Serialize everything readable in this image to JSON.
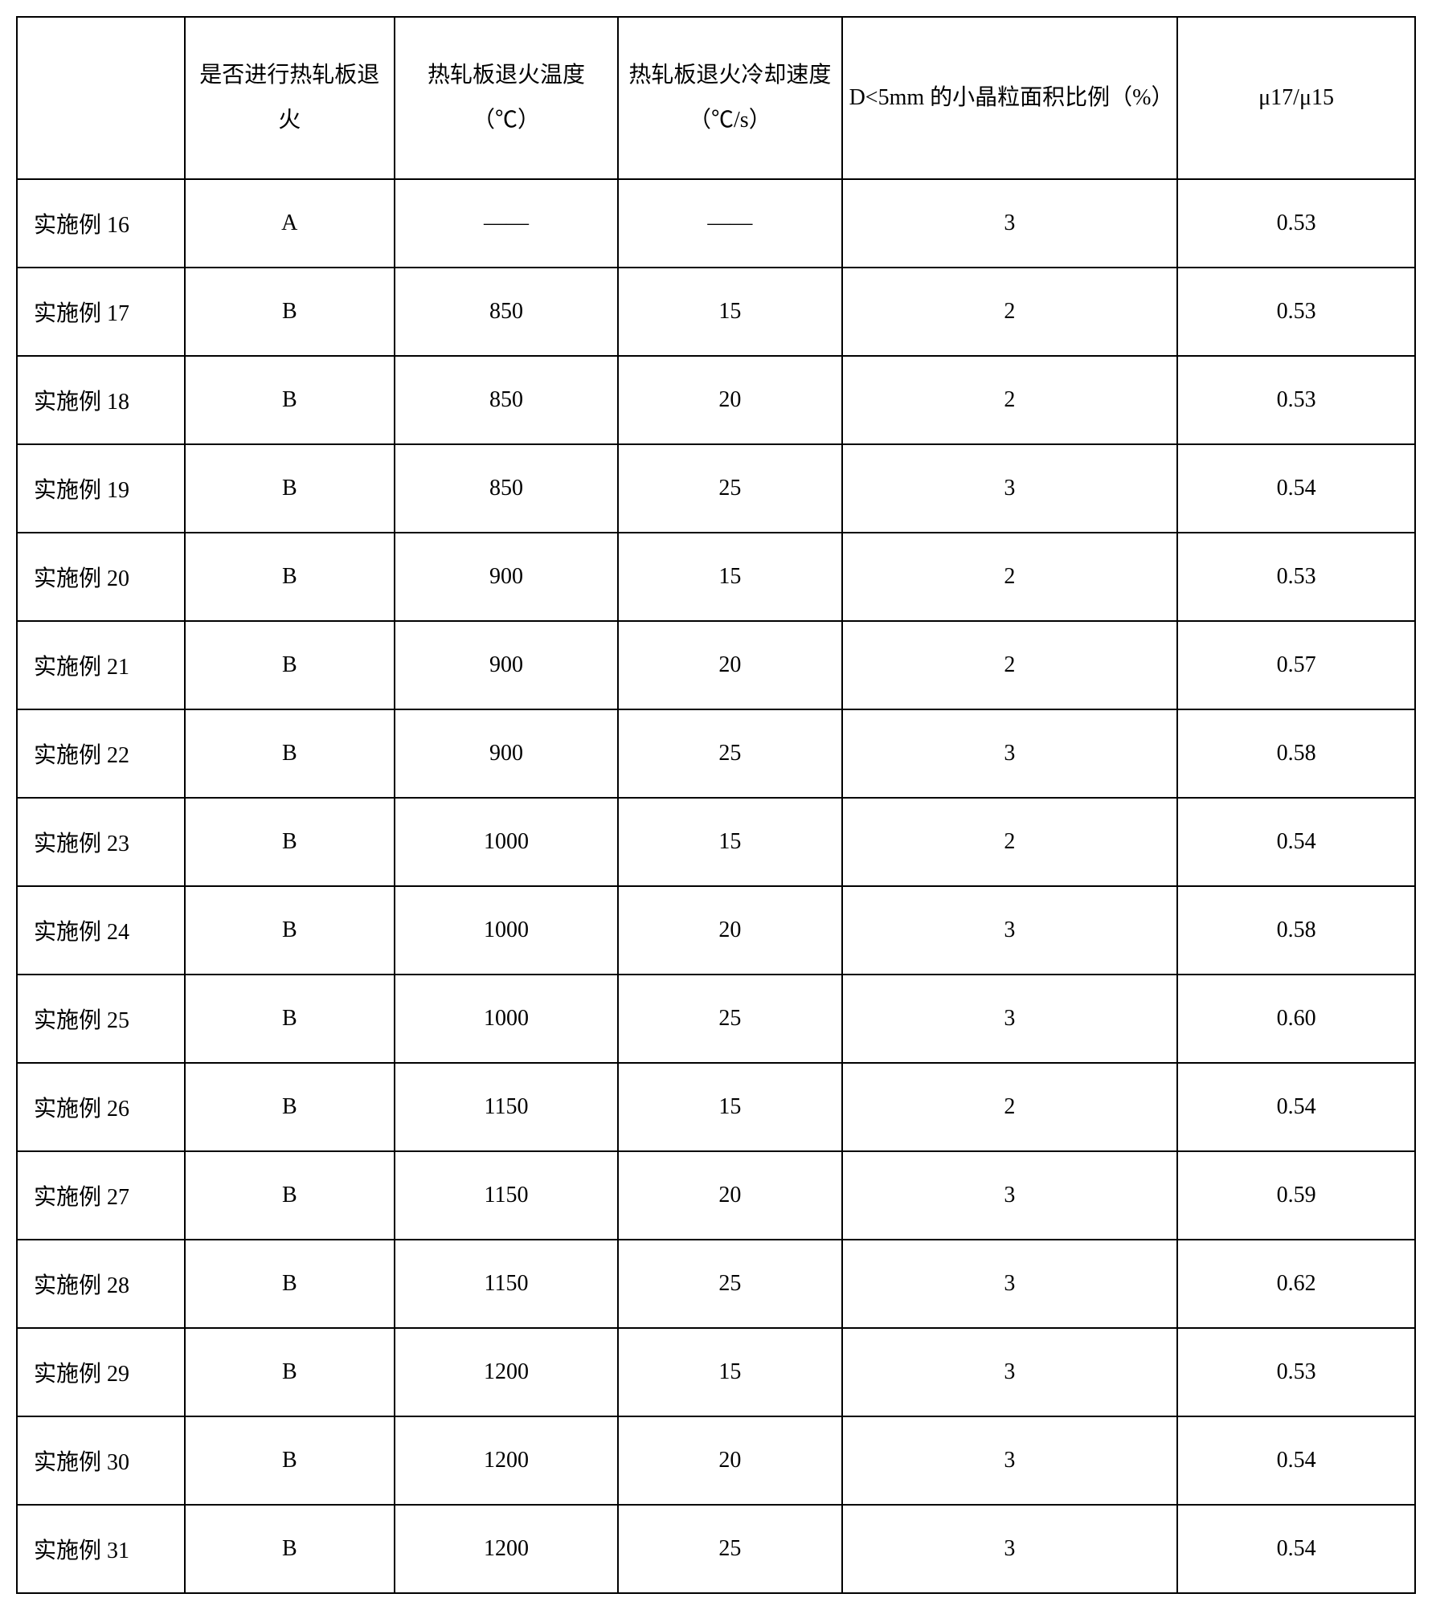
{
  "table": {
    "headers": {
      "blank": "",
      "col1": "是否进行热轧板退火",
      "col2": "热轧板退火温度（℃）",
      "col3": "热轧板退火冷却速度（℃/s）",
      "col4": "D<5mm 的小晶粒面积比例（%）",
      "col5": "μ17/μ15"
    },
    "rows": [
      {
        "label": "实施例 16",
        "c1": "A",
        "c2": "——",
        "c3": "——",
        "c4": "3",
        "c5": "0.53"
      },
      {
        "label": "实施例 17",
        "c1": "B",
        "c2": "850",
        "c3": "15",
        "c4": "2",
        "c5": "0.53"
      },
      {
        "label": "实施例 18",
        "c1": "B",
        "c2": "850",
        "c3": "20",
        "c4": "2",
        "c5": "0.53"
      },
      {
        "label": "实施例 19",
        "c1": "B",
        "c2": "850",
        "c3": "25",
        "c4": "3",
        "c5": "0.54"
      },
      {
        "label": "实施例 20",
        "c1": "B",
        "c2": "900",
        "c3": "15",
        "c4": "2",
        "c5": "0.53"
      },
      {
        "label": "实施例 21",
        "c1": "B",
        "c2": "900",
        "c3": "20",
        "c4": "2",
        "c5": "0.57"
      },
      {
        "label": "实施例 22",
        "c1": "B",
        "c2": "900",
        "c3": "25",
        "c4": "3",
        "c5": "0.58"
      },
      {
        "label": "实施例 23",
        "c1": "B",
        "c2": "1000",
        "c3": "15",
        "c4": "2",
        "c5": "0.54"
      },
      {
        "label": "实施例 24",
        "c1": "B",
        "c2": "1000",
        "c3": "20",
        "c4": "3",
        "c5": "0.58"
      },
      {
        "label": "实施例 25",
        "c1": "B",
        "c2": "1000",
        "c3": "25",
        "c4": "3",
        "c5": "0.60"
      },
      {
        "label": "实施例 26",
        "c1": "B",
        "c2": "1150",
        "c3": "15",
        "c4": "2",
        "c5": "0.54"
      },
      {
        "label": "实施例 27",
        "c1": "B",
        "c2": "1150",
        "c3": "20",
        "c4": "3",
        "c5": "0.59"
      },
      {
        "label": "实施例 28",
        "c1": "B",
        "c2": "1150",
        "c3": "25",
        "c4": "3",
        "c5": "0.62"
      },
      {
        "label": "实施例 29",
        "c1": "B",
        "c2": "1200",
        "c3": "15",
        "c4": "3",
        "c5": "0.53"
      },
      {
        "label": "实施例 30",
        "c1": "B",
        "c2": "1200",
        "c3": "20",
        "c4": "3",
        "c5": "0.54"
      },
      {
        "label": "实施例 31",
        "c1": "B",
        "c2": "1200",
        "c3": "25",
        "c4": "3",
        "c5": "0.54"
      }
    ]
  },
  "styling": {
    "border_color": "#000000",
    "border_width": 2,
    "background_color": "#ffffff",
    "text_color": "#000000",
    "header_fontsize": 28,
    "cell_fontsize": 28,
    "header_row_height": 180,
    "data_row_height": 92,
    "font_family": "SimSun"
  }
}
